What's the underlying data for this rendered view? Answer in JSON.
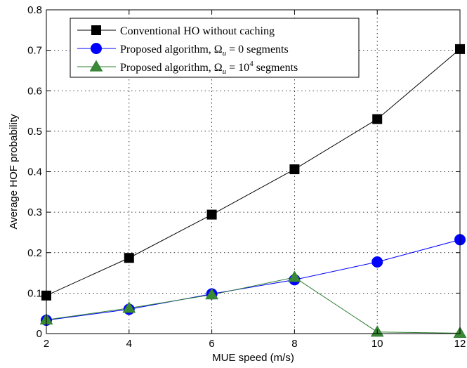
{
  "chart_data": {
    "type": "line",
    "xlabel": "MUE speed (m/s)",
    "ylabel": "Average HOF probability",
    "xlim": [
      2,
      12
    ],
    "ylim": [
      0,
      0.8
    ],
    "xticks": [
      2,
      4,
      6,
      8,
      10,
      12
    ],
    "yticks": [
      0,
      0.1,
      0.2,
      0.3,
      0.4,
      0.5,
      0.6,
      0.7,
      0.8
    ],
    "xtick_labels": [
      "2",
      "4",
      "6",
      "8",
      "10",
      "12"
    ],
    "ytick_labels": [
      "0",
      "0.1",
      "0.2",
      "0.3",
      "0.4",
      "0.5",
      "0.6",
      "0.7",
      "0.8"
    ],
    "grid": true,
    "legend_position": "top-left",
    "x": [
      2,
      4,
      6,
      8,
      10,
      12
    ],
    "series": [
      {
        "legend_parts": [
          "Conventional HO without caching"
        ],
        "values": [
          0.094,
          0.187,
          0.294,
          0.406,
          0.53,
          0.703
        ],
        "color": "#000000",
        "fill": "#000000",
        "marker": "square"
      },
      {
        "legend_parts": [
          "Proposed algorithm, ",
          "Ω",
          "u",
          " = 0 segments"
        ],
        "values": [
          0.033,
          0.06,
          0.098,
          0.133,
          0.177,
          0.232
        ],
        "color": "#0000ff",
        "fill": "#0000ff",
        "marker": "circle"
      },
      {
        "legend_parts": [
          "Proposed algorithm, ",
          "Ω",
          "u",
          " = 10",
          "4",
          " segments"
        ],
        "values": [
          0.034,
          0.063,
          0.096,
          0.139,
          0.004,
          0.001
        ],
        "color": "#2e7d32",
        "fill": "#3a8a35",
        "marker": "triangle"
      }
    ]
  }
}
